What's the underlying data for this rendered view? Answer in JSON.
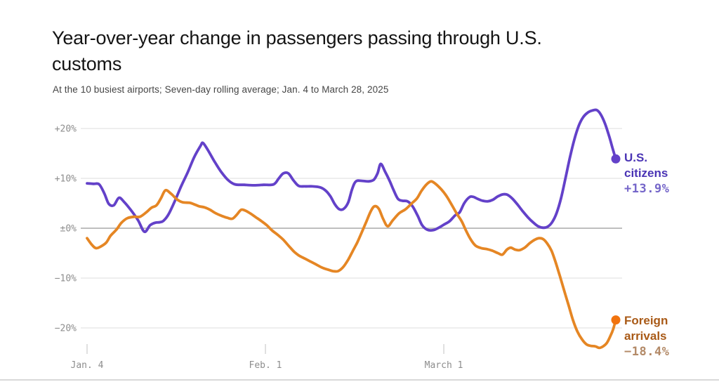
{
  "header": {
    "title_line1": "Year-over-year change in passengers passing through U.S.",
    "title_line2": "customs",
    "subtitle": "At the 10 busiest airports; Seven-day rolling average; Jan. 4 to March 28, 2025"
  },
  "chart_data": {
    "type": "line",
    "title": "Year-over-year change in passengers passing through U.S. customs",
    "subtitle": "At the 10 busiest airports; Seven-day rolling average; Jan. 4 to March 28, 2025",
    "x_unit": "days since Jan. 4, 2025",
    "x_range_days": [
      0,
      83
    ],
    "ylim": [
      -25,
      25
    ],
    "grid": true,
    "grid_color": "#e4e4e4",
    "zero_line_color": "#a9a9a9",
    "tick_color": "#cbcbcb",
    "axis_label_color": "#8d8d8d",
    "axes": {
      "y_ticks": [
        {
          "v": 20,
          "label": "+20%"
        },
        {
          "v": 10,
          "label": "+10%"
        },
        {
          "v": 0,
          "label": "±0%"
        },
        {
          "v": -10,
          "label": "−10%"
        },
        {
          "v": -20,
          "label": "−20%"
        }
      ],
      "x_ticks": [
        {
          "day": 0,
          "label": "Jan. 4"
        },
        {
          "day": 28,
          "label": "Feb. 1"
        },
        {
          "day": 56,
          "label": "March 1"
        }
      ]
    },
    "legend_position": "right-of-line-ends",
    "series": [
      {
        "id": "us-citizens",
        "name": "U.S. citizens",
        "label_lines": [
          "U.S.",
          "citizens"
        ],
        "value_label": "+13.9%",
        "end_value": 13.9,
        "color": "#6341c9",
        "dot_color": "#6341c9",
        "label_color": "#4b35b5",
        "value_color": "#7566c9",
        "points": [
          [
            0,
            9.0
          ],
          [
            1.0,
            8.9
          ],
          [
            1.9,
            8.8
          ],
          [
            2.7,
            7.0
          ],
          [
            3.4,
            4.9
          ],
          [
            4.2,
            4.6
          ],
          [
            5.0,
            6.1
          ],
          [
            5.8,
            5.3
          ],
          [
            6.9,
            3.6
          ],
          [
            8.0,
            1.6
          ],
          [
            9.0,
            -0.7
          ],
          [
            9.9,
            0.6
          ],
          [
            10.7,
            1.1
          ],
          [
            11.4,
            1.2
          ],
          [
            12.0,
            1.5
          ],
          [
            12.8,
            2.8
          ],
          [
            13.8,
            5.5
          ],
          [
            14.8,
            8.5
          ],
          [
            15.8,
            11.2
          ],
          [
            16.8,
            14.2
          ],
          [
            17.8,
            16.5
          ],
          [
            18.2,
            17.1
          ],
          [
            19.0,
            15.6
          ],
          [
            20.0,
            13.4
          ],
          [
            21.0,
            11.4
          ],
          [
            22.1,
            9.7
          ],
          [
            23.2,
            8.8
          ],
          [
            24.7,
            8.7
          ],
          [
            26.2,
            8.6
          ],
          [
            27.7,
            8.7
          ],
          [
            29.3,
            8.8
          ],
          [
            30.1,
            10.0
          ],
          [
            30.8,
            11.0
          ],
          [
            31.6,
            11.0
          ],
          [
            32.4,
            9.6
          ],
          [
            33.2,
            8.5
          ],
          [
            34.2,
            8.4
          ],
          [
            35.4,
            8.4
          ],
          [
            36.6,
            8.2
          ],
          [
            37.5,
            7.5
          ],
          [
            38.2,
            6.4
          ],
          [
            38.9,
            4.8
          ],
          [
            39.6,
            3.8
          ],
          [
            40.3,
            3.9
          ],
          [
            41.0,
            5.2
          ],
          [
            41.6,
            7.8
          ],
          [
            42.2,
            9.4
          ],
          [
            43.2,
            9.5
          ],
          [
            44.2,
            9.4
          ],
          [
            45.0,
            9.7
          ],
          [
            45.6,
            11.0
          ],
          [
            46.1,
            12.9
          ],
          [
            46.8,
            11.3
          ],
          [
            47.5,
            9.5
          ],
          [
            48.1,
            7.7
          ],
          [
            48.8,
            5.9
          ],
          [
            49.5,
            5.5
          ],
          [
            50.3,
            5.4
          ],
          [
            51.1,
            4.4
          ],
          [
            51.9,
            2.5
          ],
          [
            52.6,
            0.6
          ],
          [
            53.4,
            -0.3
          ],
          [
            54.3,
            -0.4
          ],
          [
            55.2,
            0.1
          ],
          [
            56.0,
            0.7
          ],
          [
            56.9,
            1.4
          ],
          [
            57.8,
            2.6
          ],
          [
            58.5,
            3.2
          ],
          [
            59.2,
            5.0
          ],
          [
            60.0,
            6.2
          ],
          [
            60.6,
            6.3
          ],
          [
            61.3,
            5.9
          ],
          [
            62.1,
            5.5
          ],
          [
            62.9,
            5.4
          ],
          [
            63.7,
            5.7
          ],
          [
            64.5,
            6.4
          ],
          [
            65.3,
            6.8
          ],
          [
            66.0,
            6.7
          ],
          [
            66.8,
            5.9
          ],
          [
            67.6,
            4.7
          ],
          [
            68.4,
            3.4
          ],
          [
            69.2,
            2.2
          ],
          [
            70.0,
            1.2
          ],
          [
            70.8,
            0.4
          ],
          [
            71.6,
            0.1
          ],
          [
            72.3,
            0.3
          ],
          [
            73.0,
            1.2
          ],
          [
            73.7,
            3.0
          ],
          [
            74.4,
            6.0
          ],
          [
            75.1,
            10.0
          ],
          [
            75.8,
            14.2
          ],
          [
            76.5,
            17.8
          ],
          [
            77.2,
            20.6
          ],
          [
            77.9,
            22.3
          ],
          [
            78.6,
            23.2
          ],
          [
            79.3,
            23.6
          ],
          [
            80.0,
            23.7
          ],
          [
            80.6,
            22.9
          ],
          [
            81.3,
            21.0
          ],
          [
            82.0,
            18.3
          ],
          [
            82.5,
            16.0
          ],
          [
            83,
            13.9
          ]
        ]
      },
      {
        "id": "foreign-arrivals",
        "name": "Foreign arrivals",
        "label_lines": [
          "Foreign",
          "arrivals"
        ],
        "value_label": "−18.4%",
        "end_value": -18.4,
        "color": "#e58624",
        "dot_color": "#f1730e",
        "label_color": "#a95a17",
        "value_color": "#b38a68",
        "points": [
          [
            0,
            -2.0
          ],
          [
            0.8,
            -3.4
          ],
          [
            1.4,
            -4.0
          ],
          [
            2.1,
            -3.7
          ],
          [
            3.0,
            -2.9
          ],
          [
            3.7,
            -1.5
          ],
          [
            4.6,
            -0.3
          ],
          [
            5.4,
            1.1
          ],
          [
            6.3,
            2.0
          ],
          [
            7.4,
            2.3
          ],
          [
            8.3,
            2.3
          ],
          [
            9.3,
            3.2
          ],
          [
            10.1,
            4.1
          ],
          [
            10.9,
            4.6
          ],
          [
            11.6,
            6.0
          ],
          [
            12.3,
            7.6
          ],
          [
            13.2,
            6.9
          ],
          [
            14.1,
            5.8
          ],
          [
            15.0,
            5.2
          ],
          [
            16.1,
            5.1
          ],
          [
            16.8,
            4.8
          ],
          [
            17.6,
            4.4
          ],
          [
            18.4,
            4.2
          ],
          [
            19.3,
            3.7
          ],
          [
            20.2,
            3.0
          ],
          [
            21.1,
            2.5
          ],
          [
            22.0,
            2.1
          ],
          [
            22.8,
            1.9
          ],
          [
            23.5,
            2.7
          ],
          [
            24.2,
            3.7
          ],
          [
            24.9,
            3.5
          ],
          [
            25.7,
            2.9
          ],
          [
            26.5,
            2.2
          ],
          [
            27.4,
            1.4
          ],
          [
            28.3,
            0.5
          ],
          [
            29.0,
            -0.4
          ],
          [
            29.9,
            -1.3
          ],
          [
            30.8,
            -2.3
          ],
          [
            31.7,
            -3.6
          ],
          [
            32.5,
            -4.7
          ],
          [
            33.3,
            -5.5
          ],
          [
            34.2,
            -6.1
          ],
          [
            35.1,
            -6.7
          ],
          [
            36.0,
            -7.3
          ],
          [
            36.9,
            -7.9
          ],
          [
            37.8,
            -8.3
          ],
          [
            38.6,
            -8.6
          ],
          [
            39.4,
            -8.6
          ],
          [
            40.2,
            -7.8
          ],
          [
            41.0,
            -6.3
          ],
          [
            41.7,
            -4.6
          ],
          [
            42.4,
            -2.9
          ],
          [
            43.1,
            -0.9
          ],
          [
            43.8,
            1.2
          ],
          [
            44.5,
            3.3
          ],
          [
            45.1,
            4.4
          ],
          [
            45.8,
            3.9
          ],
          [
            46.5,
            1.8
          ],
          [
            47.2,
            0.4
          ],
          [
            48.0,
            1.6
          ],
          [
            49.0,
            3.0
          ],
          [
            50.0,
            3.8
          ],
          [
            50.9,
            4.9
          ],
          [
            51.8,
            6.0
          ],
          [
            52.5,
            7.5
          ],
          [
            53.3,
            8.8
          ],
          [
            54.0,
            9.4
          ],
          [
            54.7,
            8.9
          ],
          [
            55.6,
            7.8
          ],
          [
            56.4,
            6.5
          ],
          [
            57.2,
            4.8
          ],
          [
            58.0,
            3.0
          ],
          [
            58.8,
            1.4
          ],
          [
            59.5,
            -0.5
          ],
          [
            60.2,
            -2.2
          ],
          [
            61.0,
            -3.5
          ],
          [
            61.9,
            -4.0
          ],
          [
            62.8,
            -4.2
          ],
          [
            63.6,
            -4.5
          ],
          [
            64.5,
            -5.0
          ],
          [
            65.2,
            -5.3
          ],
          [
            65.9,
            -4.3
          ],
          [
            66.5,
            -3.9
          ],
          [
            67.2,
            -4.3
          ],
          [
            67.9,
            -4.4
          ],
          [
            68.7,
            -3.9
          ],
          [
            69.5,
            -3.0
          ],
          [
            70.3,
            -2.3
          ],
          [
            71.0,
            -2.0
          ],
          [
            71.6,
            -2.2
          ],
          [
            72.2,
            -3.0
          ],
          [
            72.9,
            -4.5
          ],
          [
            73.5,
            -6.6
          ],
          [
            74.2,
            -9.5
          ],
          [
            74.9,
            -12.5
          ],
          [
            75.6,
            -15.5
          ],
          [
            76.3,
            -18.5
          ],
          [
            77.0,
            -20.8
          ],
          [
            77.7,
            -22.3
          ],
          [
            78.4,
            -23.3
          ],
          [
            79.1,
            -23.6
          ],
          [
            79.8,
            -23.7
          ],
          [
            80.4,
            -24.0
          ],
          [
            81.0,
            -23.7
          ],
          [
            81.6,
            -23.0
          ],
          [
            82.2,
            -21.5
          ],
          [
            82.6,
            -20.2
          ],
          [
            83,
            -18.4
          ]
        ]
      }
    ]
  }
}
